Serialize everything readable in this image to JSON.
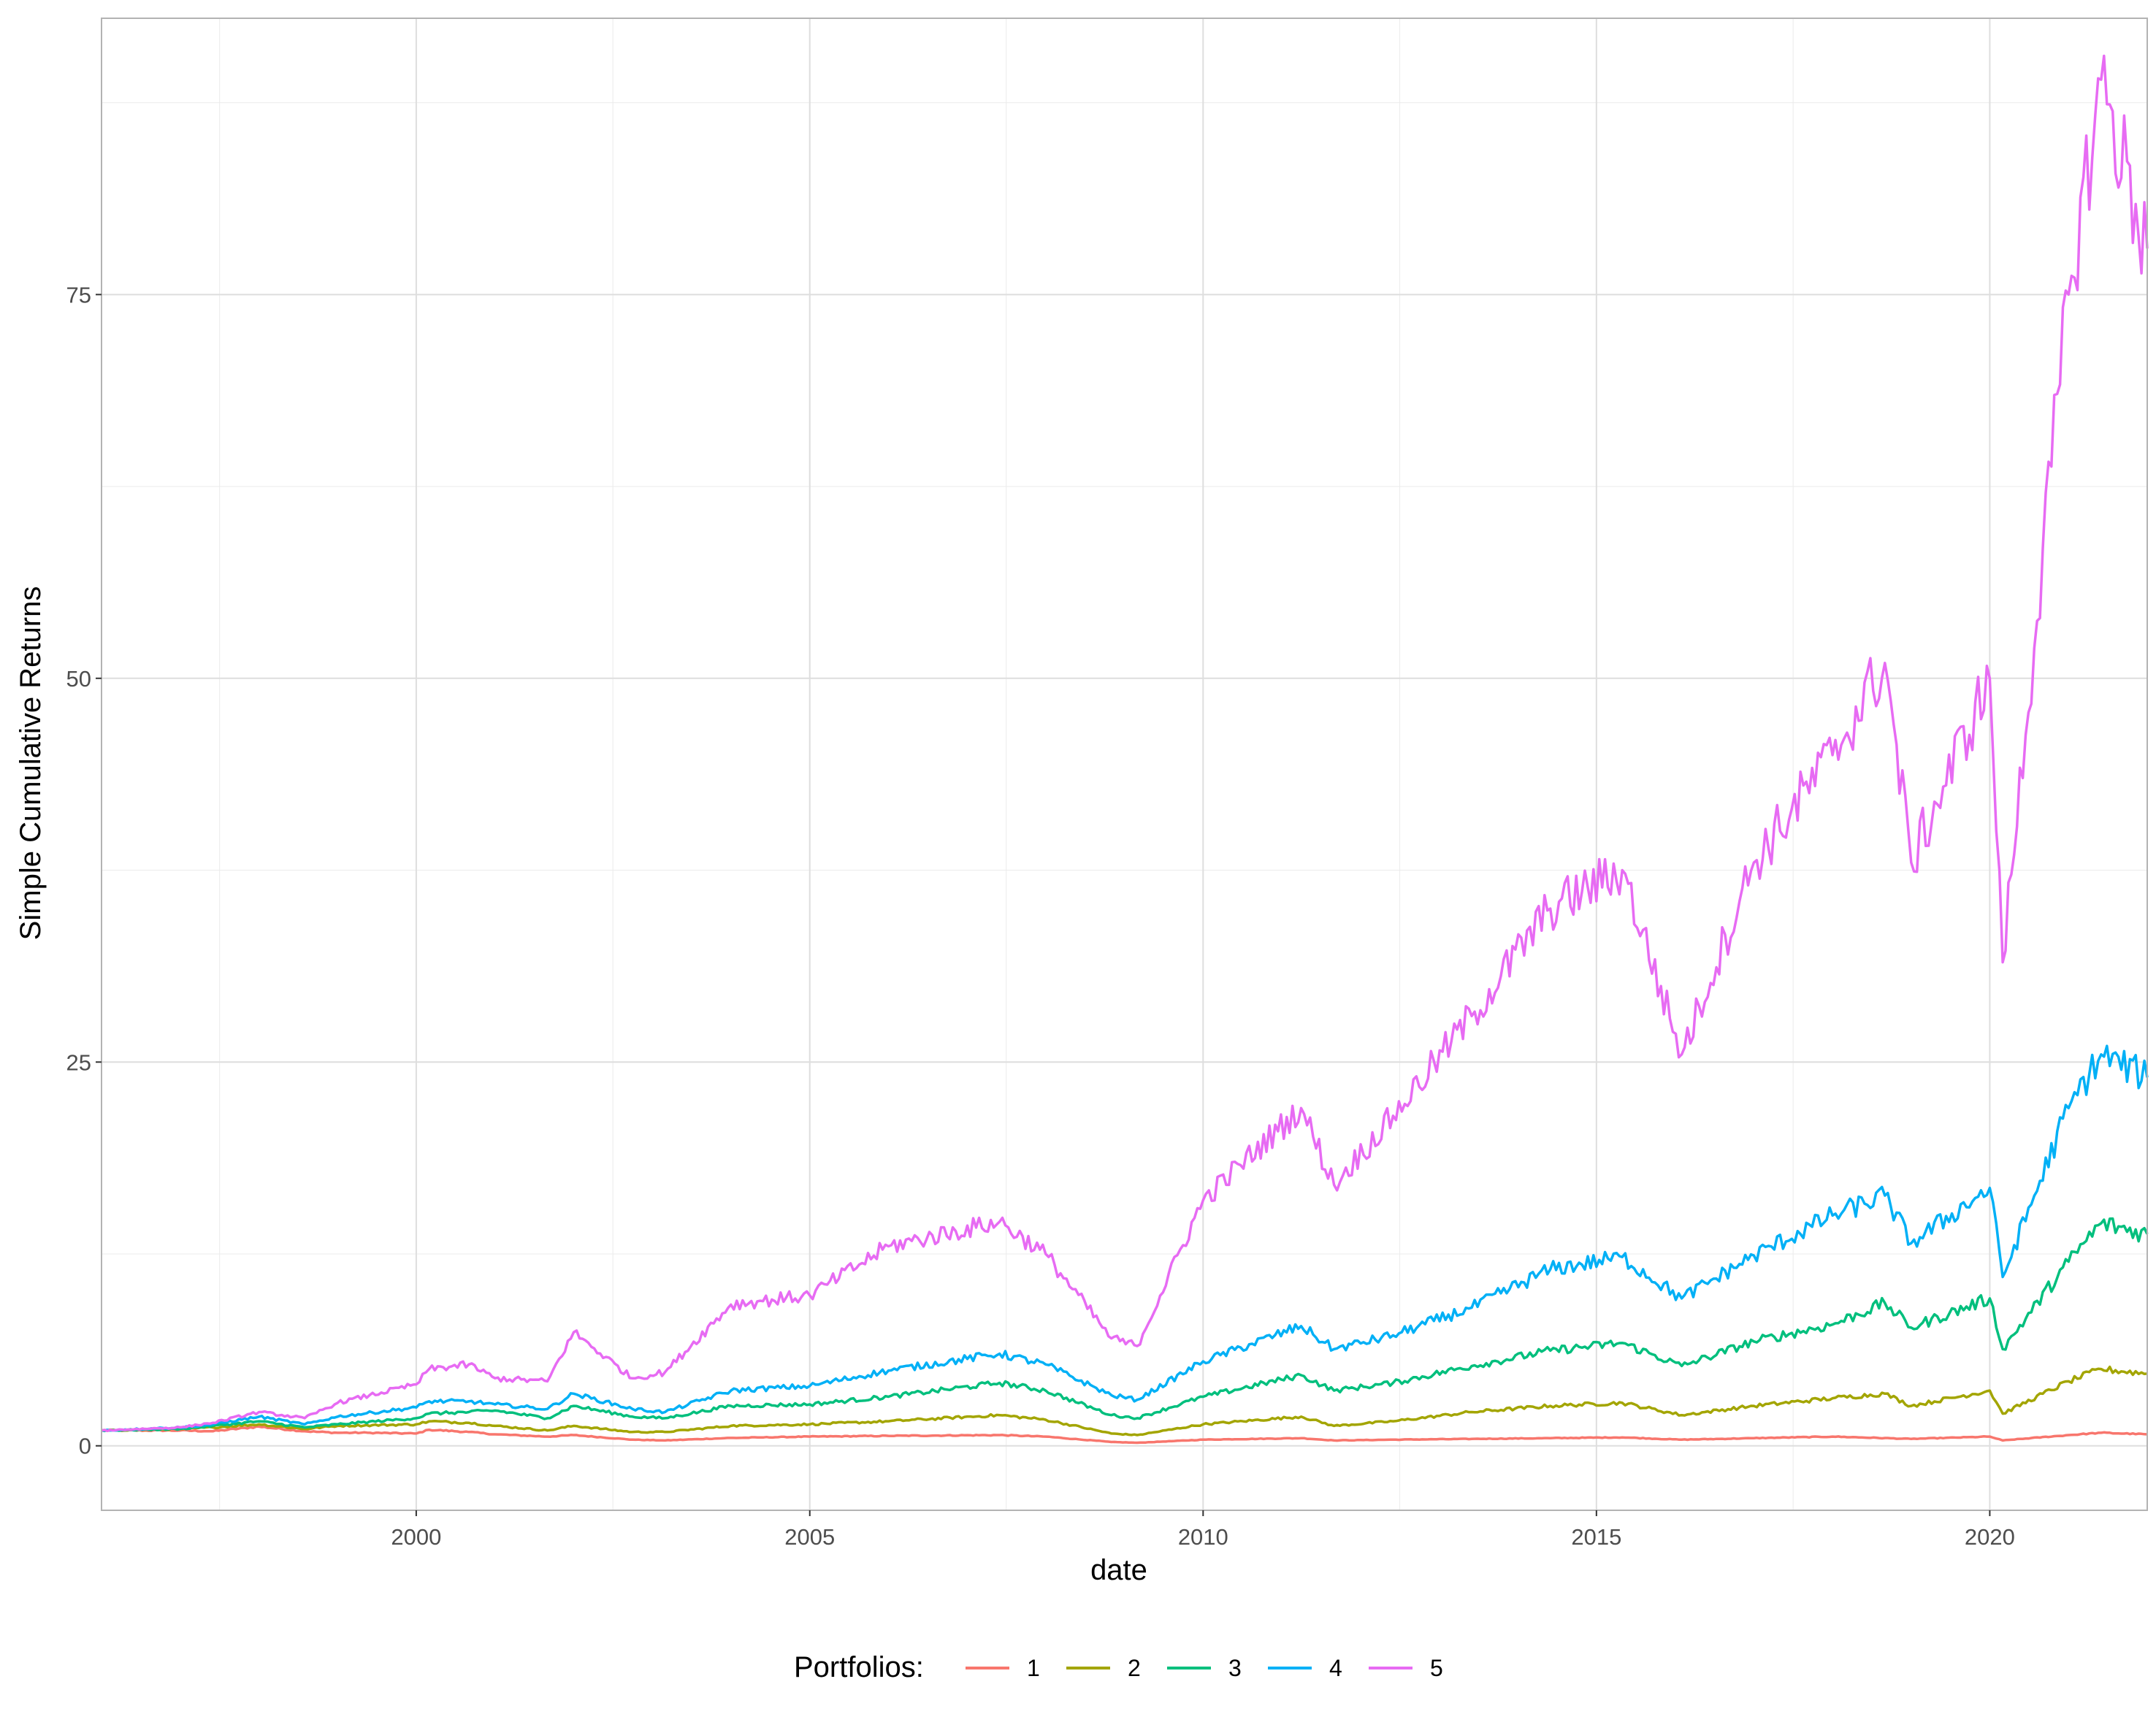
{
  "chart_data": {
    "type": "line",
    "title": "",
    "xlabel": "date",
    "ylabel": "Simple Cumulative Returns",
    "xlim": [
      "1996-01-01",
      "2022-01-01"
    ],
    "ylim": [
      -4.2,
      93
    ],
    "x_ticks": [
      {
        "date": "2000-01-01",
        "label": "2000"
      },
      {
        "date": "2005-01-01",
        "label": "2005"
      },
      {
        "date": "2010-01-01",
        "label": "2010"
      },
      {
        "date": "2015-01-01",
        "label": "2015"
      },
      {
        "date": "2020-01-01",
        "label": "2020"
      }
    ],
    "y_ticks": [
      {
        "value": 0,
        "label": "0"
      },
      {
        "value": 25,
        "label": "25"
      },
      {
        "value": 50,
        "label": "50"
      },
      {
        "value": 75,
        "label": "75"
      }
    ],
    "grid": true,
    "legend": {
      "title": "Portfolios:",
      "position": "bottom"
    },
    "series": [
      {
        "name": "1",
        "color": "#F8766D",
        "points": [
          [
            "1996-01-01",
            1.0
          ],
          [
            "1997-01-01",
            1.0
          ],
          [
            "1997-06-01",
            0.95
          ],
          [
            "1998-01-01",
            1.25
          ],
          [
            "1998-08-01",
            0.95
          ],
          [
            "1999-01-01",
            0.85
          ],
          [
            "1999-06-01",
            0.85
          ],
          [
            "2000-01-01",
            0.8
          ],
          [
            "2000-03-01",
            1.05
          ],
          [
            "2000-09-01",
            0.9
          ],
          [
            "2001-01-01",
            0.75
          ],
          [
            "2001-09-01",
            0.6
          ],
          [
            "2002-01-01",
            0.7
          ],
          [
            "2002-10-01",
            0.4
          ],
          [
            "2003-03-01",
            0.35
          ],
          [
            "2003-12-01",
            0.5
          ],
          [
            "2004-06-01",
            0.55
          ],
          [
            "2005-01-01",
            0.6
          ],
          [
            "2006-01-01",
            0.65
          ],
          [
            "2007-06-01",
            0.7
          ],
          [
            "2008-01-01",
            0.6
          ],
          [
            "2008-11-01",
            0.25
          ],
          [
            "2009-03-01",
            0.2
          ],
          [
            "2010-01-01",
            0.4
          ],
          [
            "2011-04-01",
            0.5
          ],
          [
            "2011-09-01",
            0.35
          ],
          [
            "2012-06-01",
            0.4
          ],
          [
            "2013-06-01",
            0.45
          ],
          [
            "2014-06-01",
            0.5
          ],
          [
            "2015-05-01",
            0.55
          ],
          [
            "2016-02-01",
            0.4
          ],
          [
            "2017-01-01",
            0.5
          ],
          [
            "2018-01-01",
            0.6
          ],
          [
            "2019-01-01",
            0.45
          ],
          [
            "2020-01-01",
            0.6
          ],
          [
            "2020-03-01",
            0.35
          ],
          [
            "2021-01-01",
            0.7
          ],
          [
            "2021-06-01",
            0.85
          ],
          [
            "2022-01-01",
            0.75
          ]
        ]
      },
      {
        "name": "2",
        "color": "#A3A500",
        "points": [
          [
            "1996-01-01",
            1.0
          ],
          [
            "1997-01-01",
            1.1
          ],
          [
            "1997-06-01",
            1.2
          ],
          [
            "1998-01-01",
            1.4
          ],
          [
            "1998-08-01",
            1.1
          ],
          [
            "1999-01-01",
            1.3
          ],
          [
            "2000-01-01",
            1.4
          ],
          [
            "2000-03-01",
            1.6
          ],
          [
            "2000-09-01",
            1.5
          ],
          [
            "2001-01-01",
            1.3
          ],
          [
            "2001-09-01",
            1.0
          ],
          [
            "2002-01-01",
            1.3
          ],
          [
            "2002-10-01",
            0.9
          ],
          [
            "2003-03-01",
            0.9
          ],
          [
            "2004-01-01",
            1.3
          ],
          [
            "2005-01-01",
            1.4
          ],
          [
            "2006-01-01",
            1.6
          ],
          [
            "2007-06-01",
            2.0
          ],
          [
            "2008-01-01",
            1.7
          ],
          [
            "2008-11-01",
            0.8
          ],
          [
            "2009-03-01",
            0.7
          ],
          [
            "2010-01-01",
            1.4
          ],
          [
            "2011-04-01",
            1.9
          ],
          [
            "2011-09-01",
            1.3
          ],
          [
            "2012-06-01",
            1.6
          ],
          [
            "2013-06-01",
            2.2
          ],
          [
            "2014-06-01",
            2.6
          ],
          [
            "2015-05-01",
            2.8
          ],
          [
            "2016-02-01",
            2.0
          ],
          [
            "2017-01-01",
            2.6
          ],
          [
            "2018-01-01",
            3.1
          ],
          [
            "2018-09-01",
            3.4
          ],
          [
            "2019-01-01",
            2.6
          ],
          [
            "2020-01-01",
            3.6
          ],
          [
            "2020-03-01",
            2.1
          ],
          [
            "2021-01-01",
            4.2
          ],
          [
            "2021-06-01",
            5.0
          ],
          [
            "2022-01-01",
            4.7
          ]
        ]
      },
      {
        "name": "3",
        "color": "#00BF7D",
        "points": [
          [
            "1996-01-01",
            1.0
          ],
          [
            "1997-01-01",
            1.1
          ],
          [
            "1997-06-01",
            1.3
          ],
          [
            "1998-01-01",
            1.6
          ],
          [
            "1998-08-01",
            1.2
          ],
          [
            "1999-01-01",
            1.4
          ],
          [
            "2000-01-01",
            1.8
          ],
          [
            "2000-03-01",
            2.1
          ],
          [
            "2000-09-01",
            2.2
          ],
          [
            "2001-01-01",
            2.3
          ],
          [
            "2001-09-01",
            1.8
          ],
          [
            "2002-01-01",
            2.6
          ],
          [
            "2002-10-01",
            1.9
          ],
          [
            "2003-03-01",
            1.8
          ],
          [
            "2004-01-01",
            2.6
          ],
          [
            "2005-01-01",
            2.7
          ],
          [
            "2006-01-01",
            3.2
          ],
          [
            "2007-06-01",
            4.1
          ],
          [
            "2008-01-01",
            3.6
          ],
          [
            "2008-11-01",
            2.0
          ],
          [
            "2009-03-01",
            1.8
          ],
          [
            "2010-01-01",
            3.2
          ],
          [
            "2011-04-01",
            4.6
          ],
          [
            "2011-09-01",
            3.6
          ],
          [
            "2012-06-01",
            4.1
          ],
          [
            "2013-06-01",
            5.2
          ],
          [
            "2014-06-01",
            6.2
          ],
          [
            "2015-05-01",
            6.7
          ],
          [
            "2016-02-01",
            5.2
          ],
          [
            "2017-01-01",
            6.8
          ],
          [
            "2018-01-01",
            7.9
          ],
          [
            "2018-09-01",
            9.3
          ],
          [
            "2019-01-01",
            7.7
          ],
          [
            "2020-01-01",
            9.6
          ],
          [
            "2020-03-01",
            6.3
          ],
          [
            "2021-01-01",
            12.0
          ],
          [
            "2021-06-01",
            14.5
          ],
          [
            "2022-01-01",
            13.8
          ]
        ]
      },
      {
        "name": "4",
        "color": "#00B0F6",
        "points": [
          [
            "1996-01-01",
            1.0
          ],
          [
            "1997-01-01",
            1.2
          ],
          [
            "1997-06-01",
            1.4
          ],
          [
            "1998-01-01",
            1.9
          ],
          [
            "1998-08-01",
            1.4
          ],
          [
            "1999-01-01",
            1.9
          ],
          [
            "2000-01-01",
            2.5
          ],
          [
            "2000-03-01",
            2.9
          ],
          [
            "2000-09-01",
            2.9
          ],
          [
            "2001-01-01",
            2.7
          ],
          [
            "2001-09-01",
            2.4
          ],
          [
            "2002-01-01",
            3.4
          ],
          [
            "2002-10-01",
            2.4
          ],
          [
            "2003-03-01",
            2.2
          ],
          [
            "2004-01-01",
            3.6
          ],
          [
            "2005-01-01",
            3.9
          ],
          [
            "2006-01-01",
            4.9
          ],
          [
            "2007-06-01",
            6.0
          ],
          [
            "2008-01-01",
            5.3
          ],
          [
            "2008-11-01",
            3.3
          ],
          [
            "2009-03-01",
            3.0
          ],
          [
            "2010-01-01",
            5.5
          ],
          [
            "2011-04-01",
            7.8
          ],
          [
            "2011-09-01",
            6.3
          ],
          [
            "2012-06-01",
            7.2
          ],
          [
            "2013-06-01",
            9.0
          ],
          [
            "2014-06-01",
            11.5
          ],
          [
            "2015-05-01",
            12.3
          ],
          [
            "2016-02-01",
            9.6
          ],
          [
            "2017-01-01",
            12.4
          ],
          [
            "2018-01-01",
            15.0
          ],
          [
            "2018-09-01",
            16.3
          ],
          [
            "2019-01-01",
            13.2
          ],
          [
            "2020-01-01",
            16.8
          ],
          [
            "2020-03-01",
            11.0
          ],
          [
            "2021-01-01",
            22.0
          ],
          [
            "2021-06-01",
            25.5
          ],
          [
            "2022-01-01",
            24.0
          ]
        ]
      },
      {
        "name": "5",
        "color": "#E76BF3",
        "points": [
          [
            "1996-01-01",
            1.0
          ],
          [
            "1997-01-01",
            1.2
          ],
          [
            "1997-06-01",
            1.5
          ],
          [
            "1998-01-01",
            2.2
          ],
          [
            "1998-08-01",
            1.8
          ],
          [
            "1999-01-01",
            2.8
          ],
          [
            "2000-01-01",
            4.0
          ],
          [
            "2000-03-01",
            5.0
          ],
          [
            "2000-09-01",
            5.3
          ],
          [
            "2001-01-01",
            4.4
          ],
          [
            "2001-09-01",
            4.2
          ],
          [
            "2002-01-01",
            7.4
          ],
          [
            "2002-10-01",
            4.4
          ],
          [
            "2003-03-01",
            4.8
          ],
          [
            "2004-01-01",
            9.2
          ],
          [
            "2005-01-01",
            9.8
          ],
          [
            "2006-01-01",
            13.0
          ],
          [
            "2007-06-01",
            14.6
          ],
          [
            "2008-01-01",
            12.5
          ],
          [
            "2008-11-01",
            7.0
          ],
          [
            "2009-03-01",
            6.5
          ],
          [
            "2010-01-01",
            16.0
          ],
          [
            "2011-04-01",
            22.0
          ],
          [
            "2011-09-01",
            17.0
          ],
          [
            "2012-06-01",
            21.5
          ],
          [
            "2013-06-01",
            28.0
          ],
          [
            "2014-06-01",
            35.0
          ],
          [
            "2015-05-01",
            37.5
          ],
          [
            "2016-02-01",
            25.5
          ],
          [
            "2017-01-01",
            38.0
          ],
          [
            "2018-01-01",
            45.0
          ],
          [
            "2018-09-01",
            51.0
          ],
          [
            "2019-01-01",
            38.0
          ],
          [
            "2020-01-01",
            50.0
          ],
          [
            "2020-03-01",
            31.5
          ],
          [
            "2021-01-01",
            75.0
          ],
          [
            "2021-06-01",
            89.0
          ],
          [
            "2022-01-01",
            78.0
          ]
        ]
      }
    ]
  }
}
